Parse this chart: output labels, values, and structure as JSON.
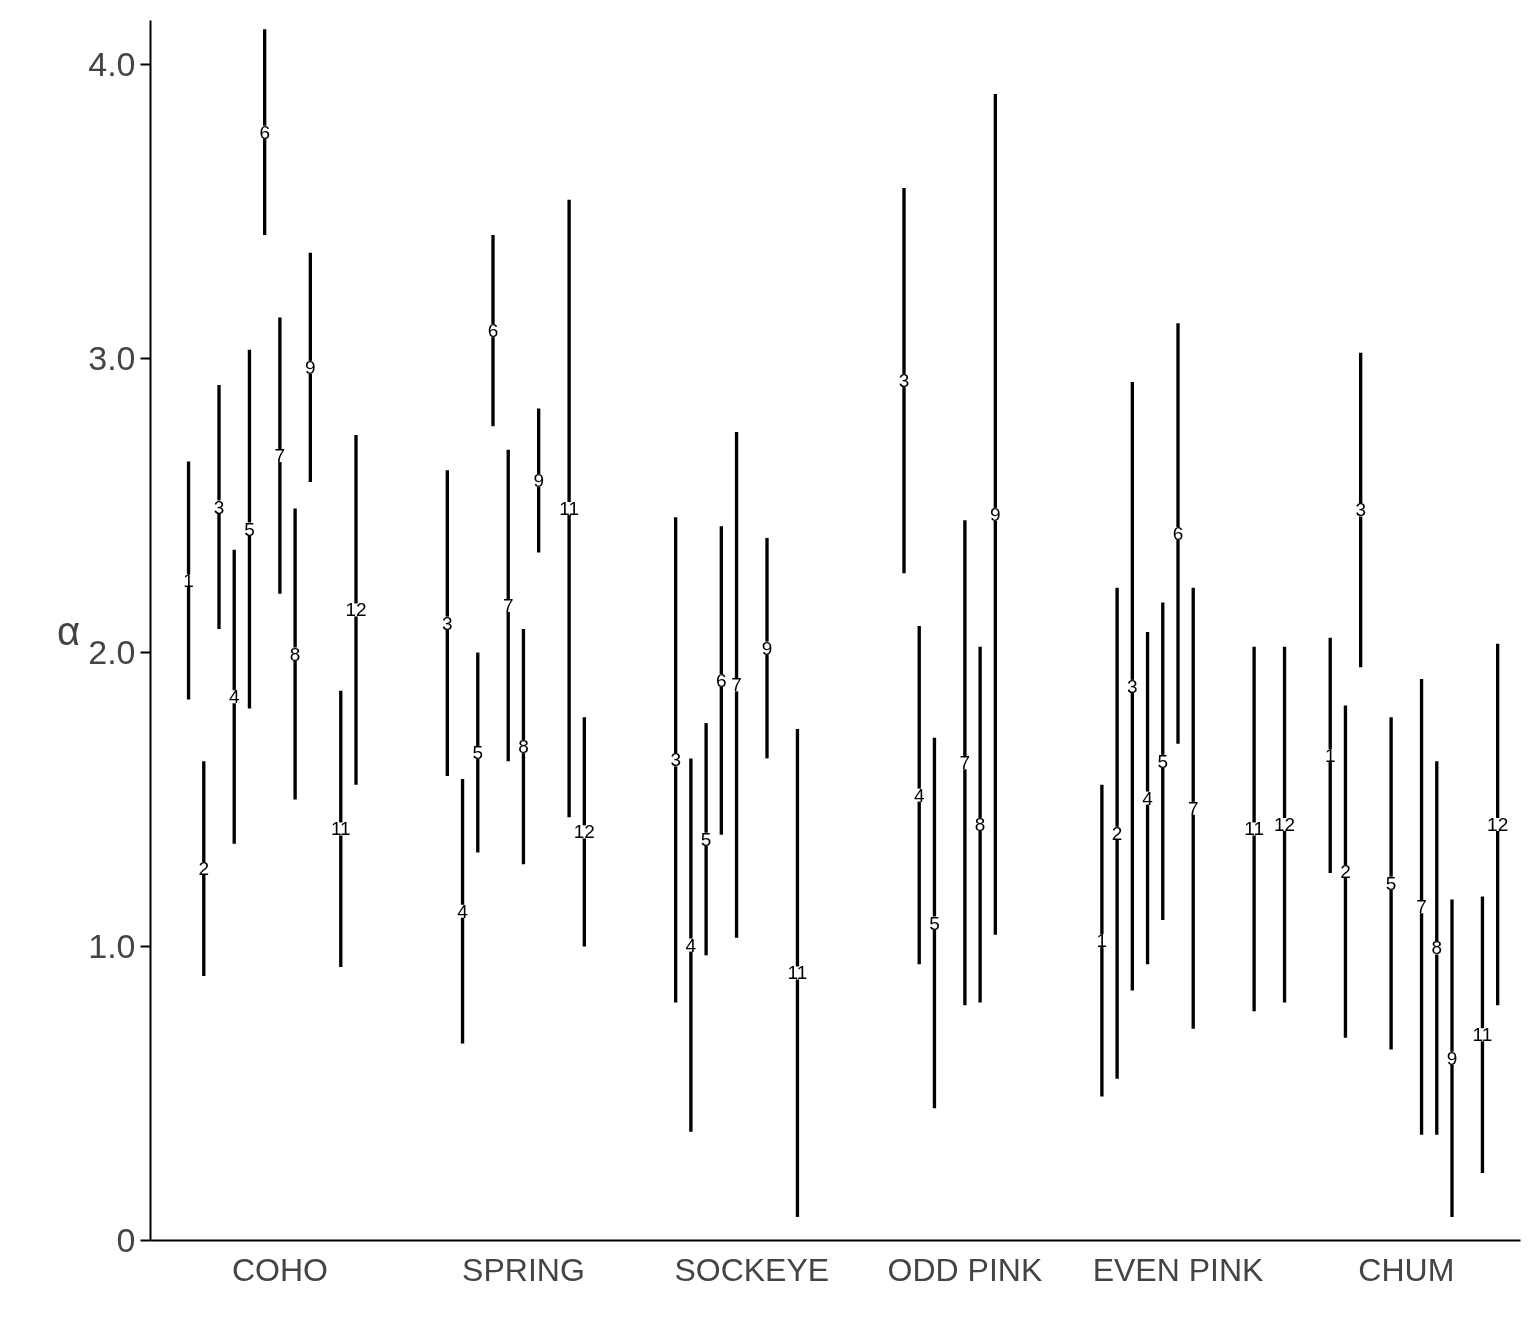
{
  "chart_data": {
    "type": "bar",
    "ylabel": "α",
    "color": "#000000",
    "grid": false,
    "categories": [
      null,
      null,
      null,
      null,
      null,
      null,
      null,
      null,
      "COHO",
      null,
      null,
      null,
      null,
      null,
      null,
      null,
      null,
      null,
      null,
      null,
      null,
      null,
      null,
      null,
      "SPRING",
      null,
      null,
      null,
      null,
      null,
      null,
      null,
      null,
      null,
      null,
      null,
      null,
      null,
      null,
      "SOCKEYE",
      null,
      null,
      null,
      null,
      null,
      null,
      null,
      null,
      null,
      null,
      null,
      null,
      null,
      "ODD PINK",
      null,
      null,
      null,
      null,
      null,
      null,
      null,
      null,
      null,
      null,
      null,
      null,
      null,
      "EVEN PINK",
      null,
      null,
      null,
      null,
      null,
      null,
      null,
      null,
      null,
      null,
      null,
      null,
      null,
      null,
      "CHUM",
      null,
      null,
      null,
      null,
      null,
      null,
      null
    ],
    "base": [
      null,
      null,
      1.84,
      0.9,
      2.08,
      1.35,
      1.81,
      3.42,
      2.2,
      1.5,
      2.58,
      null,
      0.93,
      1.55,
      null,
      null,
      null,
      null,
      null,
      1.58,
      0.67,
      1.32,
      2.77,
      1.63,
      1.28,
      2.34,
      null,
      1.44,
      1.0,
      null,
      null,
      null,
      null,
      null,
      0.81,
      0.37,
      0.97,
      1.38,
      1.03,
      null,
      1.64,
      null,
      0.08,
      null,
      null,
      null,
      null,
      null,
      null,
      2.27,
      0.94,
      0.45,
      null,
      0.8,
      0.81,
      1.04,
      null,
      null,
      null,
      null,
      null,
      null,
      0.49,
      0.55,
      0.85,
      0.94,
      1.09,
      1.69,
      0.72,
      null,
      null,
      null,
      0.78,
      null,
      0.81,
      null,
      null,
      1.25,
      0.69,
      1.95,
      null,
      0.65,
      null,
      0.36,
      0.36,
      0.08,
      null,
      0.23,
      0.8,
      null
    ],
    "values": [
      null,
      null,
      0.81,
      0.73,
      0.83,
      1.0,
      1.22,
      0.7,
      0.94,
      0.99,
      0.78,
      null,
      0.94,
      1.19,
      null,
      null,
      null,
      null,
      null,
      1.04,
      0.9,
      0.68,
      0.65,
      1.06,
      0.8,
      0.49,
      null,
      2.1,
      0.78,
      null,
      null,
      null,
      null,
      null,
      1.65,
      1.27,
      0.79,
      1.05,
      1.72,
      null,
      0.75,
      null,
      1.66,
      null,
      null,
      null,
      null,
      null,
      null,
      1.31,
      1.15,
      1.26,
      null,
      1.65,
      1.21,
      2.86,
      null,
      null,
      null,
      null,
      null,
      null,
      1.06,
      1.67,
      2.07,
      1.13,
      1.08,
      1.43,
      1.5,
      null,
      null,
      null,
      1.24,
      null,
      1.21,
      null,
      null,
      0.8,
      1.13,
      1.07,
      null,
      1.13,
      null,
      1.55,
      1.27,
      1.08,
      null,
      0.94,
      1.23,
      null
    ],
    "annotations": [
      "1",
      "2",
      "3",
      "4",
      "5",
      "6",
      "7",
      "8",
      "9",
      "11",
      "12",
      "3",
      "4",
      "5",
      "6",
      "7",
      "8",
      "9",
      "11",
      "12",
      "3",
      "4",
      "5",
      "6",
      "7",
      "9",
      "11",
      "3",
      "4",
      "5",
      "7",
      "8",
      "9",
      "1",
      "2",
      "3",
      "4",
      "5",
      "6",
      "7",
      "11",
      "12",
      "1",
      "2",
      "3",
      "5",
      "7",
      "8",
      "9",
      "11",
      "12"
    ],
    "ylim": [
      0,
      4.15
    ],
    "yticks": [
      0,
      {
        "value": 1,
        "label": "1.0"
      },
      {
        "value": 2,
        "label": "2.0"
      },
      {
        "value": 3,
        "label": "3.0"
      },
      {
        "value": 4,
        "label": "4.0"
      }
    ]
  }
}
